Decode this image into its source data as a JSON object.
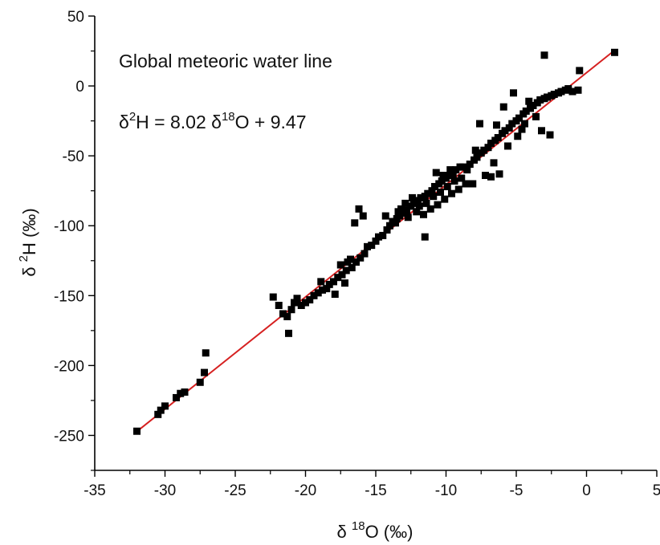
{
  "chart_data": {
    "type": "scatter",
    "annotations": [
      "Global meteoric water line"
    ],
    "equation": {
      "y_symbol": "δ",
      "y_sup": "2",
      "y_var": "H = 8.02 δ",
      "x_sup": "18",
      "x_rest": "O + 9.47"
    },
    "ylabel": {
      "prefix": "δ ",
      "sup": "2",
      "rest": "H (‰)"
    },
    "xlabel": {
      "prefix": "δ ",
      "sup": "18",
      "rest": "O (‰)"
    },
    "xlim": [
      -35,
      5
    ],
    "ylim": [
      -275,
      50
    ],
    "xticks": [
      -35,
      -30,
      -25,
      -20,
      -15,
      -10,
      -5,
      0,
      5
    ],
    "yticks": [
      50,
      0,
      -50,
      -100,
      -150,
      -200,
      -250
    ],
    "marker_color": "#000000",
    "fit": {
      "slope": 8.02,
      "intercept": 9.47,
      "x_range": [
        -32,
        2
      ],
      "color": "#d62020"
    },
    "points": [
      [
        -32.0,
        -247
      ],
      [
        -30.5,
        -235
      ],
      [
        -30.3,
        -232
      ],
      [
        -30.0,
        -229
      ],
      [
        -29.2,
        -223
      ],
      [
        -28.9,
        -220
      ],
      [
        -28.6,
        -219
      ],
      [
        -27.5,
        -212
      ],
      [
        -27.2,
        -205
      ],
      [
        -27.1,
        -191
      ],
      [
        -22.3,
        -151
      ],
      [
        -21.9,
        -157
      ],
      [
        -21.6,
        -163
      ],
      [
        -21.3,
        -165
      ],
      [
        -21.0,
        -160
      ],
      [
        -20.8,
        -155
      ],
      [
        -20.6,
        -152
      ],
      [
        -20.3,
        -157
      ],
      [
        -20.0,
        -155
      ],
      [
        -19.7,
        -153
      ],
      [
        -21.2,
        -177
      ],
      [
        -19.4,
        -150
      ],
      [
        -19.1,
        -148
      ],
      [
        -18.8,
        -146
      ],
      [
        -18.5,
        -145
      ],
      [
        -18.3,
        -142
      ],
      [
        -18.0,
        -140
      ],
      [
        -17.7,
        -137
      ],
      [
        -17.4,
        -135
      ],
      [
        -17.1,
        -132
      ],
      [
        -18.9,
        -140
      ],
      [
        -17.9,
        -149
      ],
      [
        -17.5,
        -128
      ],
      [
        -17.0,
        -126
      ],
      [
        -16.7,
        -130
      ],
      [
        -16.4,
        -126
      ],
      [
        -16.1,
        -123
      ],
      [
        -15.8,
        -120
      ],
      [
        -16.8,
        -124
      ],
      [
        -17.2,
        -141
      ],
      [
        -16.2,
        -88
      ],
      [
        -15.9,
        -93
      ],
      [
        -16.5,
        -98
      ],
      [
        -15.6,
        -115
      ],
      [
        -15.3,
        -114
      ],
      [
        -15.0,
        -111
      ],
      [
        -14.8,
        -108
      ],
      [
        -14.5,
        -107
      ],
      [
        -14.2,
        -103
      ],
      [
        -14.0,
        -100
      ],
      [
        -13.8,
        -97
      ],
      [
        -13.5,
        -95
      ],
      [
        -13.3,
        -93
      ],
      [
        -13.0,
        -91
      ],
      [
        -12.8,
        -89
      ],
      [
        -12.5,
        -86
      ],
      [
        -12.3,
        -84
      ],
      [
        -12.0,
        -82
      ],
      [
        -11.8,
        -80
      ],
      [
        -11.5,
        -79
      ],
      [
        -11.3,
        -77
      ],
      [
        -11.0,
        -75
      ],
      [
        -10.8,
        -72
      ],
      [
        -10.5,
        -70
      ],
      [
        -10.3,
        -68
      ],
      [
        -10.0,
        -66
      ],
      [
        -9.8,
        -64
      ],
      [
        -9.5,
        -63
      ],
      [
        -9.3,
        -60
      ],
      [
        -9.0,
        -58
      ],
      [
        -14.3,
        -93
      ],
      [
        -13.6,
        -98
      ],
      [
        -13.2,
        -88
      ],
      [
        -12.7,
        -94
      ],
      [
        -12.4,
        -80
      ],
      [
        -12.1,
        -90
      ],
      [
        -11.9,
        -86
      ],
      [
        -11.6,
        -92
      ],
      [
        -11.4,
        -84
      ],
      [
        -11.1,
        -88
      ],
      [
        -10.9,
        -79
      ],
      [
        -10.6,
        -85
      ],
      [
        -10.4,
        -76
      ],
      [
        -10.1,
        -81
      ],
      [
        -9.9,
        -72
      ],
      [
        -9.6,
        -77
      ],
      [
        -9.4,
        -68
      ],
      [
        -9.1,
        -74
      ],
      [
        -8.9,
        -66
      ],
      [
        -8.6,
        -70
      ],
      [
        -11.5,
        -108
      ],
      [
        -12.9,
        -84
      ],
      [
        -13.4,
        -90
      ],
      [
        -10.7,
        -62
      ],
      [
        -10.2,
        -64
      ],
      [
        -9.7,
        -60
      ],
      [
        -8.8,
        -58
      ],
      [
        -8.5,
        -60
      ],
      [
        -8.3,
        -56
      ],
      [
        -8.0,
        -53
      ],
      [
        -7.8,
        -51
      ],
      [
        -7.5,
        -48
      ],
      [
        -7.3,
        -46
      ],
      [
        -7.0,
        -44
      ],
      [
        -6.8,
        -41
      ],
      [
        -6.5,
        -39
      ],
      [
        -6.3,
        -37
      ],
      [
        -6.0,
        -34
      ],
      [
        -5.8,
        -32
      ],
      [
        -5.5,
        -30
      ],
      [
        -5.3,
        -27
      ],
      [
        -5.0,
        -25
      ],
      [
        -4.8,
        -23
      ],
      [
        -4.5,
        -20
      ],
      [
        -4.3,
        -18
      ],
      [
        -4.0,
        -16
      ],
      [
        -3.8,
        -14
      ],
      [
        -3.5,
        -12
      ],
      [
        -3.3,
        -10
      ],
      [
        -3.0,
        -9
      ],
      [
        -2.8,
        -8
      ],
      [
        -2.5,
        -7
      ],
      [
        -2.3,
        -6
      ],
      [
        -2.0,
        -5
      ],
      [
        -1.8,
        -4
      ],
      [
        -1.5,
        -3
      ],
      [
        -1.3,
        -2
      ],
      [
        -1.0,
        -4
      ],
      [
        -0.6,
        -3
      ],
      [
        -0.5,
        11
      ],
      [
        -7.6,
        -27
      ],
      [
        -6.4,
        -28
      ],
      [
        -5.9,
        -15
      ],
      [
        -5.6,
        -43
      ],
      [
        -5.2,
        -5
      ],
      [
        -4.9,
        -36
      ],
      [
        -4.6,
        -31
      ],
      [
        -4.1,
        -11
      ],
      [
        -3.6,
        -22
      ],
      [
        -3.2,
        -32
      ],
      [
        -2.6,
        -35
      ],
      [
        -3.0,
        22
      ],
      [
        2.0,
        24
      ],
      [
        -6.2,
        -63
      ],
      [
        -6.8,
        -65
      ],
      [
        -7.2,
        -64
      ],
      [
        -8.1,
        -70
      ],
      [
        -6.6,
        -55
      ],
      [
        -7.9,
        -46
      ],
      [
        -4.4,
        -27
      ]
    ]
  }
}
